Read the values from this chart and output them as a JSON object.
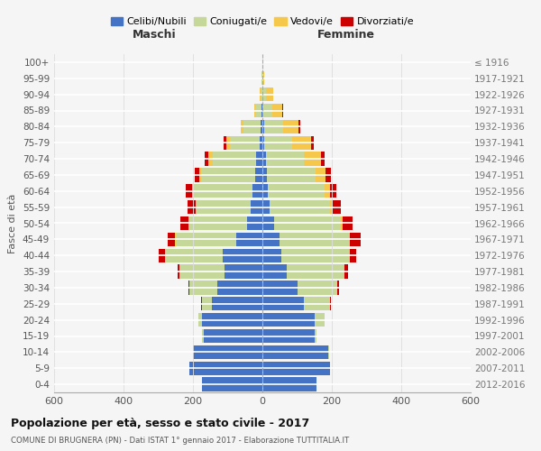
{
  "age_groups": [
    "0-4",
    "5-9",
    "10-14",
    "15-19",
    "20-24",
    "25-29",
    "30-34",
    "35-39",
    "40-44",
    "45-49",
    "50-54",
    "55-59",
    "60-64",
    "65-69",
    "70-74",
    "75-79",
    "80-84",
    "85-89",
    "90-94",
    "95-99",
    "100+"
  ],
  "birth_years": [
    "2012-2016",
    "2007-2011",
    "2002-2006",
    "1997-2001",
    "1992-1996",
    "1987-1991",
    "1982-1986",
    "1977-1981",
    "1972-1976",
    "1967-1971",
    "1962-1966",
    "1957-1961",
    "1952-1956",
    "1947-1951",
    "1942-1946",
    "1937-1941",
    "1932-1936",
    "1927-1931",
    "1922-1926",
    "1917-1921",
    "≤ 1916"
  ],
  "maschi": {
    "celibi": [
      175,
      210,
      200,
      170,
      175,
      145,
      130,
      110,
      115,
      75,
      45,
      35,
      28,
      22,
      18,
      8,
      4,
      2,
      0,
      0,
      0
    ],
    "coniugati": [
      0,
      0,
      0,
      4,
      10,
      30,
      80,
      130,
      165,
      175,
      165,
      155,
      170,
      155,
      125,
      85,
      50,
      18,
      5,
      2,
      0
    ],
    "vedovi": [
      0,
      0,
      0,
      0,
      0,
      0,
      0,
      0,
      1,
      2,
      2,
      3,
      5,
      5,
      12,
      10,
      8,
      4,
      2,
      0,
      0
    ],
    "divorziati": [
      0,
      0,
      0,
      0,
      0,
      1,
      2,
      5,
      18,
      22,
      25,
      22,
      18,
      12,
      10,
      8,
      0,
      0,
      0,
      0,
      0
    ]
  },
  "femmine": {
    "nubili": [
      155,
      195,
      190,
      150,
      150,
      120,
      100,
      70,
      55,
      50,
      35,
      20,
      15,
      12,
      10,
      5,
      4,
      3,
      2,
      0,
      0
    ],
    "coniugate": [
      0,
      0,
      2,
      5,
      30,
      75,
      115,
      165,
      195,
      200,
      190,
      175,
      165,
      140,
      110,
      80,
      55,
      25,
      8,
      2,
      0
    ],
    "vedove": [
      0,
      0,
      0,
      0,
      0,
      0,
      0,
      1,
      2,
      3,
      5,
      8,
      15,
      30,
      50,
      55,
      45,
      30,
      20,
      3,
      0
    ],
    "divorziate": [
      0,
      0,
      0,
      0,
      0,
      2,
      5,
      10,
      18,
      30,
      30,
      22,
      18,
      15,
      10,
      8,
      5,
      2,
      0,
      0,
      0
    ]
  },
  "colors": {
    "celibi": "#4472C4",
    "coniugati": "#C5D89A",
    "vedovi": "#F5C84C",
    "divorziati": "#CC0000"
  },
  "xlim": [
    -600,
    600
  ],
  "xticks": [
    -600,
    -400,
    -200,
    0,
    200,
    400,
    600
  ],
  "xticklabels": [
    "600",
    "400",
    "200",
    "0",
    "200",
    "400",
    "600"
  ],
  "title": "Popolazione per età, sesso e stato civile - 2017",
  "subtitle": "COMUNE DI BRUGNERA (PN) - Dati ISTAT 1° gennaio 2017 - Elaborazione TUTTITALIA.IT",
  "ylabel_left": "Fasce di età",
  "maschi_label": "Maschi",
  "femmine_label": "Femmine",
  "legend_labels": [
    "Celibi/Nubili",
    "Coniugati/e",
    "Vedovi/e",
    "Divorziati/e"
  ],
  "bg_color": "#f5f5f5",
  "bar_height": 0.85
}
